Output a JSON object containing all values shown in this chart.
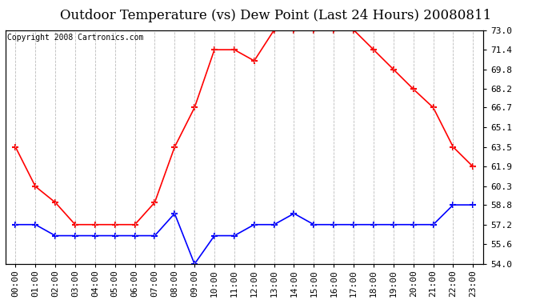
{
  "title": "Outdoor Temperature (vs) Dew Point (Last 24 Hours) 20080811",
  "copyright_text": "Copyright 2008 Cartronics.com",
  "x_labels": [
    "00:00",
    "01:00",
    "02:00",
    "03:00",
    "04:00",
    "05:00",
    "06:00",
    "07:00",
    "08:00",
    "09:00",
    "10:00",
    "11:00",
    "12:00",
    "13:00",
    "14:00",
    "15:00",
    "16:00",
    "17:00",
    "18:00",
    "19:00",
    "20:00",
    "21:00",
    "22:00",
    "23:00"
  ],
  "temp_data": [
    63.5,
    60.3,
    59.0,
    57.2,
    57.2,
    57.2,
    57.2,
    59.0,
    63.5,
    66.7,
    71.4,
    71.4,
    70.5,
    73.0,
    73.0,
    73.0,
    73.0,
    73.0,
    71.4,
    69.8,
    68.2,
    66.7,
    63.5,
    61.9
  ],
  "dew_data": [
    57.2,
    57.2,
    56.3,
    56.3,
    56.3,
    56.3,
    56.3,
    56.3,
    58.1,
    54.0,
    56.3,
    56.3,
    57.2,
    57.2,
    58.1,
    57.2,
    57.2,
    57.2,
    57.2,
    57.2,
    57.2,
    57.2,
    58.8,
    58.8
  ],
  "temp_color": "#ff0000",
  "dew_color": "#0000ff",
  "bg_color": "#ffffff",
  "plot_bg_color": "#ffffff",
  "grid_color": "#bbbbbb",
  "ylim_min": 54.0,
  "ylim_max": 73.0,
  "yticks": [
    54.0,
    55.6,
    57.2,
    58.8,
    60.3,
    61.9,
    63.5,
    65.1,
    66.7,
    68.2,
    69.8,
    71.4,
    73.0
  ],
  "title_fontsize": 12,
  "copyright_fontsize": 7,
  "tick_fontsize": 8,
  "marker": "+",
  "marker_size": 6,
  "linewidth": 1.2
}
